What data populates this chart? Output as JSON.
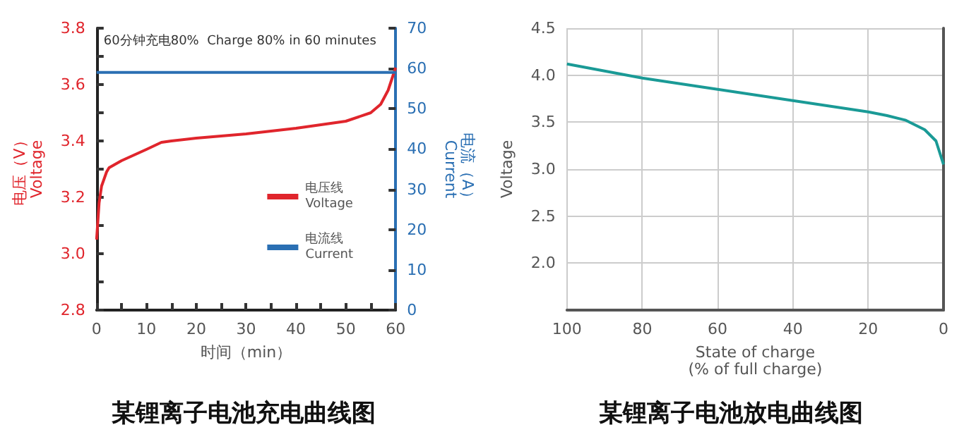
{
  "chart_data": [
    {
      "type": "line",
      "title": "某锂离子电池充电曲线图",
      "xlabel": "时间（min）",
      "ylabel": "电压（V）\nVoltage",
      "y2label": "电流（A）\nCurrent",
      "annotations": [
        "60分钟充电80%  Charge 80% in 60 minutes"
      ],
      "xlim": [
        0,
        60
      ],
      "xticks": [
        0,
        {
          "value": 5,
          "label": null
        },
        10,
        {
          "value": 15,
          "label": null
        },
        20,
        {
          "value": 25,
          "label": null
        },
        30,
        {
          "value": 35,
          "label": null
        },
        40,
        {
          "value": 45,
          "label": null
        },
        50,
        {
          "value": 55,
          "label": null
        },
        60
      ],
      "ylim": [
        2.8,
        3.8
      ],
      "yticks": [
        2.8,
        {
          "value": 2.9,
          "label": null
        },
        {
          "value": 3.0,
          "label": "3.0"
        },
        {
          "value": 3.1,
          "label": null
        },
        3.2,
        {
          "value": 3.3,
          "label": null
        },
        3.4,
        {
          "value": 3.5,
          "label": null
        },
        3.6,
        {
          "value": 3.7,
          "label": null
        },
        3.8
      ],
      "y2lim": [
        0,
        70
      ],
      "y2ticks": [
        0,
        10,
        20,
        30,
        40,
        50,
        60,
        70
      ],
      "legend": "right",
      "grid": false,
      "marker": "none",
      "line_style": "solid",
      "series": [
        {
          "name": "电压线\nVoltage",
          "color": "#e0252c",
          "x": [
            0,
            0.5,
            1,
            2,
            2.5,
            5,
            10,
            13,
            15,
            20,
            30,
            40,
            50,
            55,
            57,
            58.5,
            60
          ],
          "values": [
            3.05,
            3.18,
            3.24,
            3.29,
            3.305,
            3.33,
            3.37,
            3.395,
            3.4,
            3.41,
            3.425,
            3.445,
            3.47,
            3.5,
            3.53,
            3.58,
            3.66
          ]
        },
        {
          "name": "电流线\nCurrent",
          "color": "#2a6fb3",
          "axis": "y2",
          "x": [
            0,
            60
          ],
          "values": [
            59,
            59
          ]
        }
      ]
    },
    {
      "type": "line",
      "title": "某锂离子电池放电曲线图",
      "xlabel": "State of charge\n(% of full charge)",
      "ylabel": "Voltage",
      "xlim": [
        100,
        0
      ],
      "xticks": [
        100,
        80,
        60,
        40,
        20,
        0
      ],
      "ylim": [
        1.5,
        4.5
      ],
      "yticks": [
        {
          "value": 2,
          "label": "2.0"
        },
        2.5,
        {
          "value": 3,
          "label": "3.0"
        },
        3.5,
        {
          "value": 4,
          "label": "4.0"
        },
        4.5
      ],
      "grid": true,
      "marker": "none",
      "line_style": "solid",
      "series": [
        {
          "color": "#1a9a96",
          "x": [
            100,
            80,
            60,
            40,
            20,
            15,
            10,
            5,
            2,
            0
          ],
          "values": [
            4.12,
            3.97,
            3.85,
            3.73,
            3.61,
            3.57,
            3.52,
            3.42,
            3.3,
            3.05
          ]
        }
      ]
    }
  ]
}
